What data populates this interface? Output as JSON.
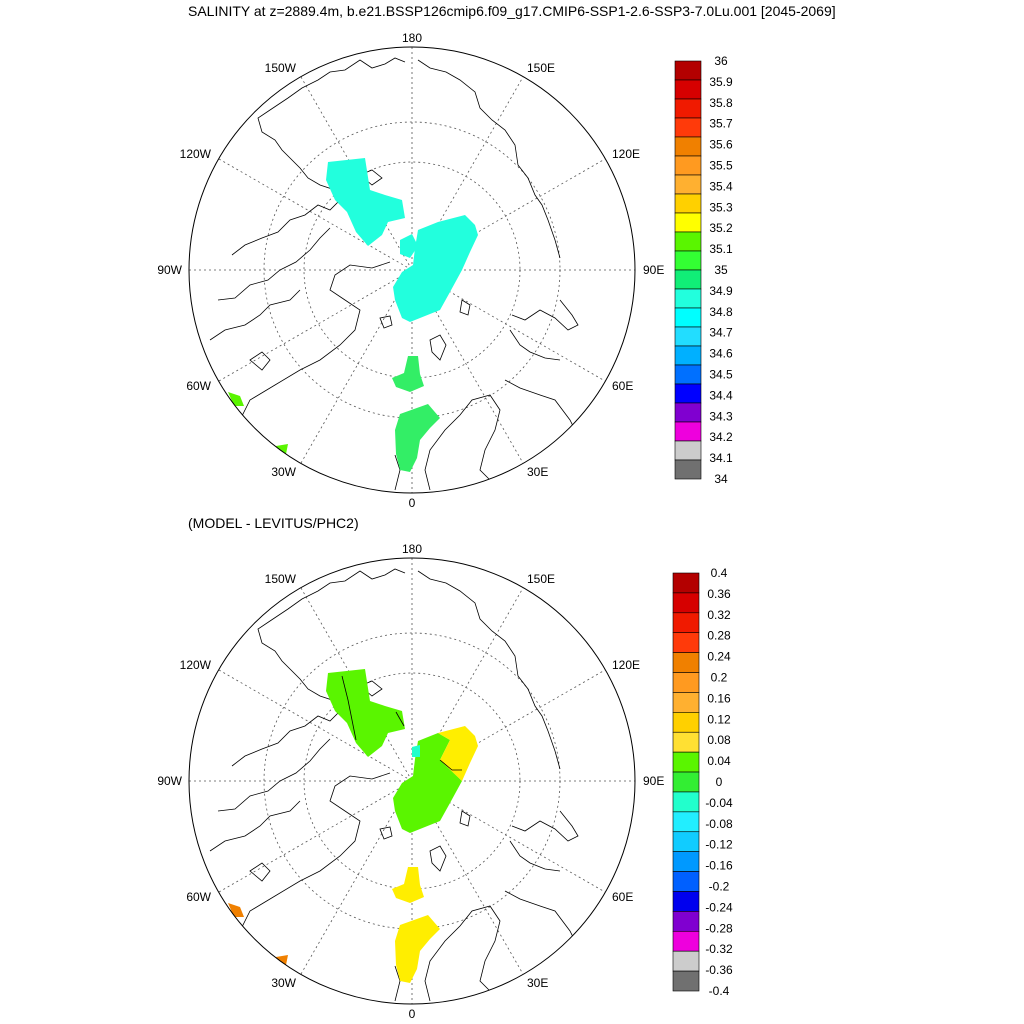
{
  "figure": {
    "title": "SALINITY at z=2889.4m, b.e21.BSSP126cmip6.f09_g17.CMIP6-SSP1-2.6-SSP3-7.0Lu.001 [2045-2069]",
    "subtitle": "(MODEL - LEVITUS/PHC2)"
  },
  "map_labels": {
    "top": "180",
    "bottom": "0",
    "left": "90W",
    "right": "90E",
    "upper_left": "150W",
    "upper_right": "150E",
    "mid_upper_left": "120W",
    "mid_upper_right": "120E",
    "mid_lower_left": "60W",
    "mid_lower_right": "60E",
    "lower_left": "30W",
    "lower_right": "30E"
  },
  "colorbars": {
    "salinity": {
      "labels": [
        "36",
        "35.9",
        "35.8",
        "35.7",
        "35.6",
        "35.5",
        "35.4",
        "35.3",
        "35.2",
        "35.1",
        "35",
        "34.9",
        "34.8",
        "34.7",
        "34.6",
        "34.5",
        "34.4",
        "34.3",
        "34.2",
        "34.1",
        "34"
      ],
      "colors": [
        "#b30000",
        "#d60000",
        "#f01a00",
        "#ff3a0a",
        "#f08000",
        "#ff9a20",
        "#ffb030",
        "#ffd000",
        "#ffff00",
        "#5af500",
        "#33ff33",
        "#11ee77",
        "#22ffdd",
        "#00ffff",
        "#22ddff",
        "#00b0ff",
        "#0070ff",
        "#0000ff",
        "#8000d0",
        "#ee00dd",
        "#cccccc",
        "#707070"
      ]
    },
    "difference": {
      "labels": [
        "0.4",
        "0.36",
        "0.32",
        "0.28",
        "0.24",
        "0.2",
        "0.16",
        "0.12",
        "0.08",
        "0.04",
        "0",
        "-0.04",
        "-0.08",
        "-0.12",
        "-0.16",
        "-0.2",
        "-0.24",
        "-0.28",
        "-0.32",
        "-0.36",
        "-0.4"
      ],
      "colors": [
        "#b30000",
        "#d60000",
        "#f01a00",
        "#ff3a0a",
        "#f08000",
        "#ff9a20",
        "#ffb030",
        "#ffd000",
        "#ffe033",
        "#5af500",
        "#33ee33",
        "#22ffcc",
        "#22eeff",
        "#11ccff",
        "#0099ff",
        "#0060ff",
        "#0000ee",
        "#8000d0",
        "#ee00dd",
        "#cccccc",
        "#707070"
      ]
    }
  },
  "field_colors": {
    "salinity_a": "#22ffdd",
    "salinity_b": "#33ee66",
    "salinity_c": "#5af500",
    "diff_green": "#5af500",
    "diff_yellow": "#ffee00",
    "diff_orange": "#f08000",
    "diff_cyan": "#22ffcc"
  }
}
